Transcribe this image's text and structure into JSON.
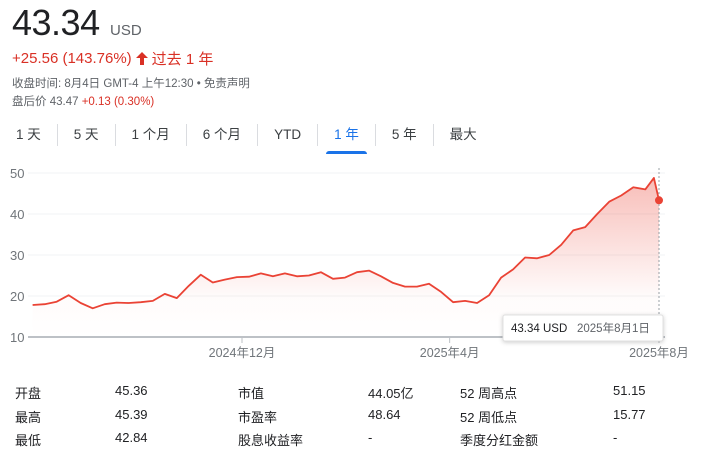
{
  "quote": {
    "price": "43.34",
    "currency": "USD",
    "change": "+25.56 (143.76%)",
    "period": "过去 1 年",
    "arrow_icon": "arrow-up-icon",
    "close_time": "收盘时间: 8月4日 GMT-4 上午12:30",
    "disclaimer": "免责声明",
    "after_hours_label": "盘后价",
    "after_hours_price": "43.47",
    "after_hours_change": "+0.13 (0.30%)"
  },
  "colors": {
    "up": "#d93025",
    "accent": "#1a73e8",
    "line": "#ea4335"
  },
  "tabs": [
    {
      "label": "1 天"
    },
    {
      "label": "5 天"
    },
    {
      "label": "1 个月"
    },
    {
      "label": "6 个月"
    },
    {
      "label": "YTD"
    },
    {
      "label": "1 年",
      "active": true
    },
    {
      "label": "5 年"
    },
    {
      "label": "最大"
    }
  ],
  "chart_data": {
    "type": "area",
    "ylim": [
      10,
      50
    ],
    "yticks": [
      "50",
      "40",
      "30",
      "20",
      "10"
    ],
    "xticks": [
      {
        "date": "2024-12-01",
        "label": "2024年12月"
      },
      {
        "date": "2025-04-01",
        "label": "2025年4月"
      },
      {
        "date": "2025-08-01",
        "label": "2025年8月"
      }
    ],
    "grid": true,
    "x": [
      "2024-08-01",
      "2024-08-08",
      "2024-08-15",
      "2024-08-22",
      "2024-08-29",
      "2024-09-05",
      "2024-09-12",
      "2024-09-19",
      "2024-09-26",
      "2024-10-03",
      "2024-10-10",
      "2024-10-17",
      "2024-10-24",
      "2024-10-31",
      "2024-11-07",
      "2024-11-14",
      "2024-11-21",
      "2024-11-28",
      "2024-12-05",
      "2024-12-12",
      "2024-12-19",
      "2024-12-26",
      "2025-01-02",
      "2025-01-09",
      "2025-01-16",
      "2025-01-23",
      "2025-01-30",
      "2025-02-06",
      "2025-02-13",
      "2025-02-20",
      "2025-02-27",
      "2025-03-06",
      "2025-03-13",
      "2025-03-20",
      "2025-03-27",
      "2025-04-03",
      "2025-04-10",
      "2025-04-17",
      "2025-04-24",
      "2025-05-01",
      "2025-05-08",
      "2025-05-15",
      "2025-05-22",
      "2025-05-29",
      "2025-06-05",
      "2025-06-12",
      "2025-06-19",
      "2025-06-26",
      "2025-07-03",
      "2025-07-10",
      "2025-07-17",
      "2025-07-24",
      "2025-07-29",
      "2025-08-01"
    ],
    "values": [
      17.8,
      18.0,
      18.6,
      20.2,
      18.3,
      17.0,
      18.0,
      18.4,
      18.3,
      18.5,
      18.8,
      20.5,
      19.5,
      22.5,
      25.2,
      23.3,
      24.0,
      24.6,
      24.7,
      25.5,
      24.8,
      25.5,
      24.8,
      25.0,
      25.8,
      24.2,
      24.5,
      25.8,
      26.2,
      24.8,
      23.2,
      22.3,
      22.3,
      23.0,
      21.0,
      18.5,
      18.8,
      18.3,
      20.2,
      24.5,
      26.5,
      29.4,
      29.2,
      30.0,
      32.5,
      36.0,
      36.8,
      40.0,
      43.0,
      44.5,
      46.5,
      46.0,
      48.8,
      43.34
    ],
    "tooltip": {
      "value": "43.34 USD",
      "date": "2025年8月1日"
    }
  },
  "stats": [
    [
      {
        "label": "开盘",
        "value": "45.36"
      },
      {
        "label": "市值",
        "value": "44.05亿"
      },
      {
        "label": "52 周高点",
        "value": "51.15"
      }
    ],
    [
      {
        "label": "最高",
        "value": "45.39"
      },
      {
        "label": "市盈率",
        "value": "48.64"
      },
      {
        "label": "52 周低点",
        "value": "15.77"
      }
    ],
    [
      {
        "label": "最低",
        "value": "42.84"
      },
      {
        "label": "股息收益率",
        "value": "-"
      },
      {
        "label": "季度分红金额",
        "value": "-"
      }
    ]
  ]
}
